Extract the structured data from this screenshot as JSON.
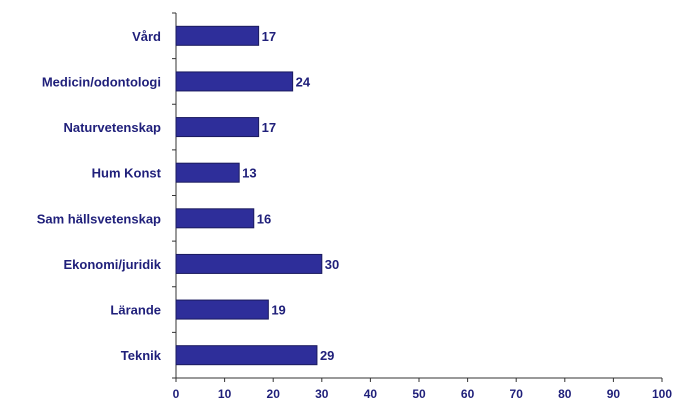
{
  "chart_data": {
    "type": "bar",
    "orientation": "horizontal",
    "categories": [
      "Vård",
      "Medicin/odontologi",
      "Naturvetenskap",
      "Hum Konst",
      "Sam hällsvetenskap",
      "Ekonomi/juridik",
      "Lärande",
      "Teknik"
    ],
    "values": [
      17,
      24,
      17,
      13,
      16,
      30,
      19,
      29
    ],
    "xlim": [
      0,
      100
    ],
    "xticks": [
      0,
      10,
      20,
      30,
      40,
      50,
      60,
      70,
      80,
      90,
      100
    ],
    "title": "",
    "xlabel": "",
    "ylabel": "",
    "grid": false,
    "legend": "none",
    "colors": {
      "bar_fill": "#2e2e9a",
      "bar_stroke": "#1a1a5e",
      "text": "#1f1f7a",
      "axis": "#333333"
    }
  }
}
